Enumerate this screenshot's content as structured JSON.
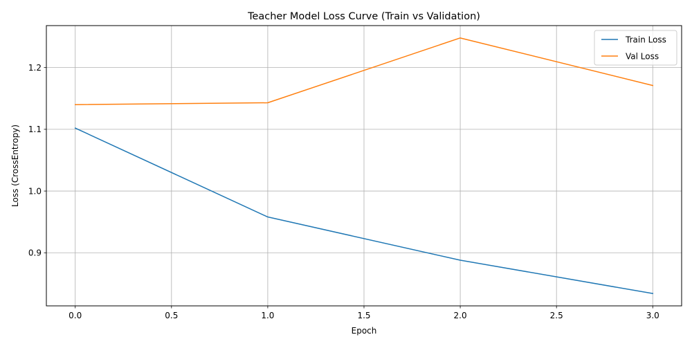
{
  "chart_data": {
    "type": "line",
    "title": "Teacher Model Loss Curve (Train vs Validation)",
    "xlabel": "Epoch",
    "ylabel": "Loss (CrossEntropy)",
    "x": [
      0,
      1,
      2,
      3
    ],
    "xlim": [
      -0.15,
      3.15
    ],
    "ylim": [
      0.814,
      1.268
    ],
    "xticks": [
      0.0,
      0.5,
      1.0,
      1.5,
      2.0,
      2.5,
      3.0
    ],
    "xtick_labels": [
      "0.0",
      "0.5",
      "1.0",
      "1.5",
      "2.0",
      "2.5",
      "3.0"
    ],
    "yticks": [
      0.9,
      1.0,
      1.1,
      1.2
    ],
    "ytick_labels": [
      "0.9",
      "1.0",
      "1.1",
      "1.2"
    ],
    "grid": true,
    "legend_position": "top-right",
    "series": [
      {
        "name": "Train Loss",
        "color": "#1f77b4",
        "values": [
          1.102,
          0.958,
          0.888,
          0.834
        ]
      },
      {
        "name": "Val Loss",
        "color": "#ff7f0e",
        "values": [
          1.14,
          1.143,
          1.248,
          1.171
        ]
      }
    ]
  }
}
